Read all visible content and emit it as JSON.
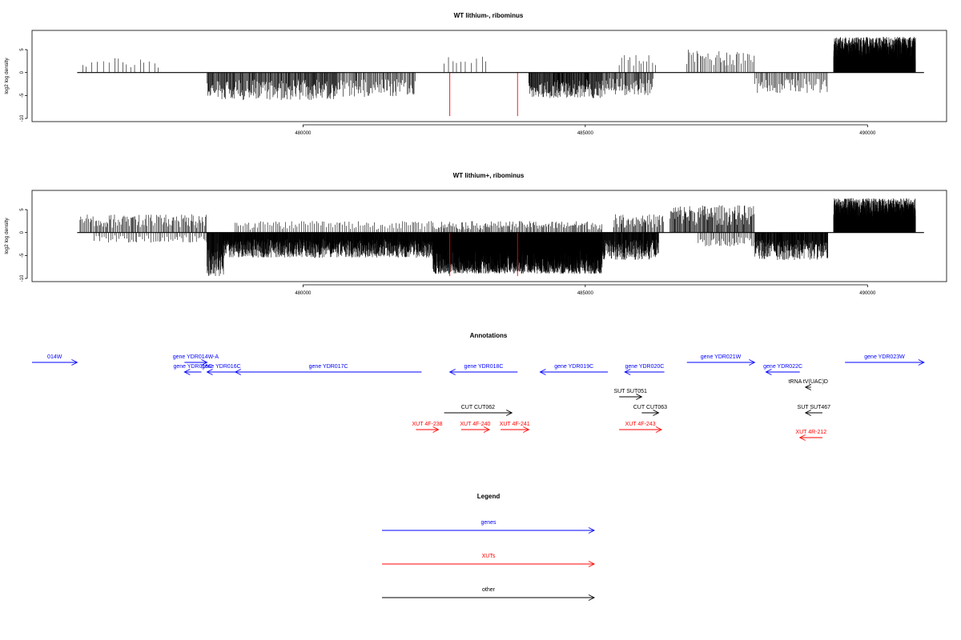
{
  "chart_data": [
    {
      "type": "bar",
      "title": "WT lithium-, ribominus",
      "ylabel": "log2 log density",
      "xlabel": "",
      "xlim": [
        475200,
        491400
      ],
      "ylim": [
        -10,
        8.5
      ],
      "xticks": [
        480000,
        485000,
        490000
      ],
      "yticks": [
        -10,
        -5,
        0,
        5
      ],
      "grid": false,
      "baseline": {
        "x": [
          476000,
          491000
        ]
      },
      "density": "sparse",
      "highlights": [
        {
          "x": 482600,
          "value": -9.5,
          "color": "#ff0000"
        },
        {
          "x": 483800,
          "value": -9.5,
          "color": "#ff0000"
        }
      ],
      "segments": [
        {
          "start": 476100,
          "end": 477500,
          "sign": 1,
          "max": 3.2,
          "density": 0.012
        },
        {
          "start": 478300,
          "end": 480600,
          "sign": -1,
          "max": 6.0,
          "density": 0.09
        },
        {
          "start": 480600,
          "end": 482000,
          "sign": -1,
          "max": 5.3,
          "density": 0.06
        },
        {
          "start": 482500,
          "end": 483300,
          "sign": 1,
          "max": 3.5,
          "density": 0.012
        },
        {
          "start": 484000,
          "end": 485300,
          "sign": -1,
          "max": 5.6,
          "density": 0.12
        },
        {
          "start": 485300,
          "end": 486200,
          "sign": -1,
          "max": 5.0,
          "density": 0.07
        },
        {
          "start": 485600,
          "end": 486300,
          "sign": 1,
          "max": 4.0,
          "density": 0.02
        },
        {
          "start": 486800,
          "end": 488000,
          "sign": 1,
          "max": 5.0,
          "density": 0.035
        },
        {
          "start": 488000,
          "end": 489300,
          "sign": -1,
          "max": 4.5,
          "density": 0.045
        },
        {
          "start": 489400,
          "end": 490850,
          "sign": 1,
          "max": 7.8,
          "density": 0.55
        }
      ]
    },
    {
      "type": "bar",
      "title": "WT lithium+, ribominus",
      "ylabel": "log2 log density",
      "xlabel": "",
      "xlim": [
        475200,
        491400
      ],
      "ylim": [
        -10,
        8.5
      ],
      "xticks": [
        480000,
        485000,
        490000
      ],
      "yticks": [
        -10,
        -5,
        0,
        5
      ],
      "grid": false,
      "baseline": {
        "x": [
          476000,
          491000
        ]
      },
      "density": "dense",
      "highlights": [
        {
          "x": 482600,
          "value": -9.5,
          "color": "#ff0000"
        },
        {
          "x": 483800,
          "value": -9.5,
          "color": "#ff0000"
        }
      ],
      "segments": [
        {
          "start": 476050,
          "end": 478300,
          "sign": 1,
          "max": 4.0,
          "density": 0.05
        },
        {
          "start": 476300,
          "end": 478300,
          "sign": -1,
          "max": 2.2,
          "density": 0.03
        },
        {
          "start": 478300,
          "end": 478600,
          "sign": -1,
          "max": 9.5,
          "density": 0.2
        },
        {
          "start": 478600,
          "end": 482300,
          "sign": -1,
          "max": 5.5,
          "density": 0.25
        },
        {
          "start": 478800,
          "end": 482300,
          "sign": 1,
          "max": 2.5,
          "density": 0.03
        },
        {
          "start": 482300,
          "end": 485300,
          "sign": -1,
          "max": 9.0,
          "density": 0.7
        },
        {
          "start": 482300,
          "end": 485300,
          "sign": 1,
          "max": 2.5,
          "density": 0.05
        },
        {
          "start": 485300,
          "end": 486300,
          "sign": -1,
          "max": 6.0,
          "density": 0.2
        },
        {
          "start": 485500,
          "end": 486400,
          "sign": 1,
          "max": 4.0,
          "density": 0.06
        },
        {
          "start": 486500,
          "end": 488000,
          "sign": 1,
          "max": 6.0,
          "density": 0.08
        },
        {
          "start": 487000,
          "end": 488000,
          "sign": -1,
          "max": 3.0,
          "density": 0.04
        },
        {
          "start": 488000,
          "end": 489300,
          "sign": -1,
          "max": 6.0,
          "density": 0.18
        },
        {
          "start": 489400,
          "end": 490850,
          "sign": 1,
          "max": 7.5,
          "density": 0.6
        }
      ]
    }
  ],
  "annotations": {
    "title": "Annotations",
    "xlim": [
      475200,
      491400
    ],
    "colors": {
      "genes": "#0000ff",
      "XUTs": "#ff0000",
      "other": "#000000"
    },
    "features": [
      {
        "label": "014W",
        "start": 475200,
        "end": 476000,
        "strand": "+",
        "row": 0,
        "type": "genes"
      },
      {
        "label": "gene YDR014W-A",
        "start": 477900,
        "end": 478300,
        "strand": "+",
        "row": 0,
        "type": "genes"
      },
      {
        "label": "gene YDR015C",
        "start": 477900,
        "end": 478200,
        "strand": "-",
        "row": 1,
        "type": "genes"
      },
      {
        "label": "gene YDR016C",
        "start": 478300,
        "end": 478800,
        "strand": "-",
        "row": 1,
        "type": "genes"
      },
      {
        "label": "gene YDR017C",
        "start": 478800,
        "end": 482100,
        "strand": "-",
        "row": 1,
        "type": "genes"
      },
      {
        "label": "gene YDR018C",
        "start": 482600,
        "end": 483800,
        "strand": "-",
        "row": 1,
        "type": "genes"
      },
      {
        "label": "gene YDR019C",
        "start": 484200,
        "end": 485400,
        "strand": "-",
        "row": 1,
        "type": "genes"
      },
      {
        "label": "gene YDR020C",
        "start": 485700,
        "end": 486400,
        "strand": "-",
        "row": 1,
        "type": "genes"
      },
      {
        "label": "gene YDR021W",
        "start": 486800,
        "end": 488000,
        "strand": "+",
        "row": 0,
        "type": "genes"
      },
      {
        "label": "gene YDR022C",
        "start": 488200,
        "end": 488800,
        "strand": "-",
        "row": 1,
        "type": "genes"
      },
      {
        "label": "gene YDR023W",
        "start": 489600,
        "end": 491000,
        "strand": "+",
        "row": 0,
        "type": "genes"
      },
      {
        "label": "tRNA tV(UAC)D",
        "start": 488900,
        "end": 489000,
        "strand": "-",
        "row": 2,
        "type": "other"
      },
      {
        "label": "SUT SUT051",
        "start": 485600,
        "end": 486000,
        "strand": "+",
        "row": 3,
        "type": "other"
      },
      {
        "label": "SUT SUT467",
        "start": 488900,
        "end": 489200,
        "strand": "-",
        "row": 4,
        "type": "other"
      },
      {
        "label": "CUT CUT062",
        "start": 482500,
        "end": 483700,
        "strand": "+",
        "row": 5,
        "type": "other"
      },
      {
        "label": "CUT CUT063",
        "start": 486000,
        "end": 486300,
        "strand": "+",
        "row": 5,
        "type": "other"
      },
      {
        "label": "XUT 4F-238",
        "start": 482000,
        "end": 482400,
        "strand": "+",
        "row": 6,
        "type": "XUTs"
      },
      {
        "label": "XUT 4F-240",
        "start": 482800,
        "end": 483300,
        "strand": "+",
        "row": 6,
        "type": "XUTs"
      },
      {
        "label": "XUT 4F-241",
        "start": 483500,
        "end": 484000,
        "strand": "+",
        "row": 6,
        "type": "XUTs"
      },
      {
        "label": "XUT 4F-243",
        "start": 485600,
        "end": 486350,
        "strand": "+",
        "row": 6,
        "type": "XUTs"
      },
      {
        "label": "XUT 4R-212",
        "start": 488800,
        "end": 489200,
        "strand": "-",
        "row": 7,
        "type": "XUTs"
      }
    ]
  },
  "legend": {
    "title": "Legend",
    "items": [
      {
        "label": "genes",
        "color": "#0000ff"
      },
      {
        "label": "XUTs",
        "color": "#ff0000"
      },
      {
        "label": "other",
        "color": "#000000"
      }
    ]
  }
}
